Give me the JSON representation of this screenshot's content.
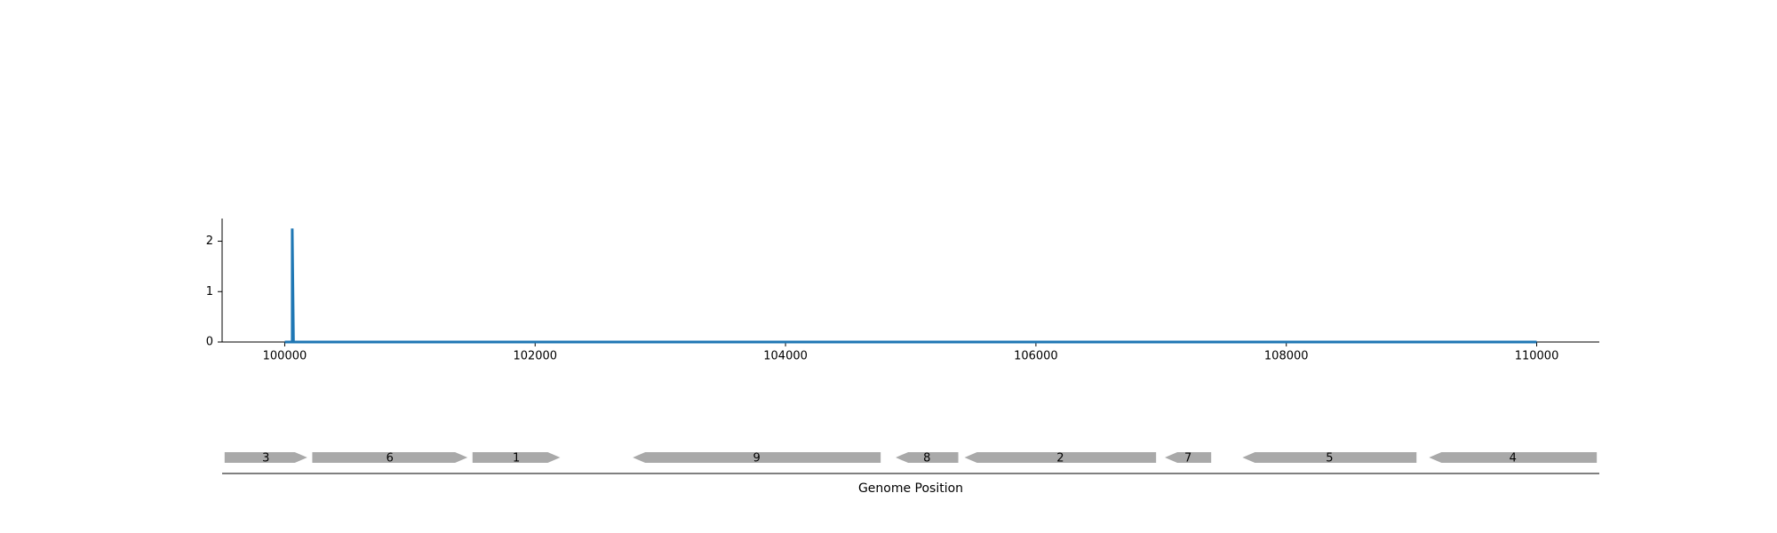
{
  "chart_data": [
    {
      "type": "line",
      "title": "",
      "xlabel": "",
      "ylabel": "",
      "xlim": [
        99500,
        110500
      ],
      "ylim": [
        0,
        2.45
      ],
      "x_ticks": [
        100000,
        102000,
        104000,
        106000,
        108000,
        110000
      ],
      "y_ticks": [
        0,
        1,
        2
      ],
      "grid": false,
      "color": "#1f77b4",
      "series": [
        {
          "x": [
            100000,
            100050,
            100060,
            100060,
            100070,
            110000
          ],
          "y": [
            0,
            0,
            0,
            2.25,
            0,
            0
          ]
        }
      ]
    },
    {
      "type": "gene_track",
      "xlabel": "Genome Position",
      "xlim": [
        99500,
        110500
      ],
      "color": "#a9a9a9",
      "genes": [
        {
          "label": "3",
          "start": 99520,
          "end": 100180,
          "strand": "+"
        },
        {
          "label": "6",
          "start": 100220,
          "end": 101460,
          "strand": "+"
        },
        {
          "label": "1",
          "start": 101500,
          "end": 102200,
          "strand": "+"
        },
        {
          "label": "9",
          "start": 102780,
          "end": 104760,
          "strand": "-"
        },
        {
          "label": "8",
          "start": 104880,
          "end": 105380,
          "strand": "-"
        },
        {
          "label": "2",
          "start": 105430,
          "end": 106960,
          "strand": "-"
        },
        {
          "label": "7",
          "start": 107030,
          "end": 107400,
          "strand": "-"
        },
        {
          "label": "5",
          "start": 107650,
          "end": 109040,
          "strand": "-"
        },
        {
          "label": "4",
          "start": 109140,
          "end": 110480,
          "strand": "-"
        }
      ]
    }
  ]
}
